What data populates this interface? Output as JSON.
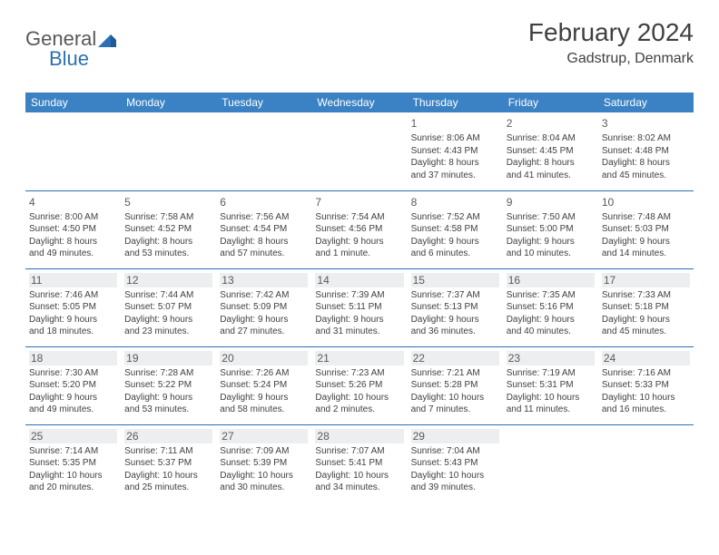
{
  "logo": {
    "text1": "General",
    "text2": "Blue"
  },
  "title": "February 2024",
  "location": "Gadstrup, Denmark",
  "colors": {
    "header_bg": "#3b82c4",
    "header_text": "#ffffff",
    "border": "#2d6fb3",
    "body_text": "#404040",
    "shade": "#eceeef"
  },
  "weekdays": [
    "Sunday",
    "Monday",
    "Tuesday",
    "Wednesday",
    "Thursday",
    "Friday",
    "Saturday"
  ],
  "weeks": [
    [
      null,
      null,
      null,
      null,
      {
        "d": "1",
        "sr": "Sunrise: 8:06 AM",
        "ss": "Sunset: 4:43 PM",
        "dl1": "Daylight: 8 hours",
        "dl2": "and 37 minutes."
      },
      {
        "d": "2",
        "sr": "Sunrise: 8:04 AM",
        "ss": "Sunset: 4:45 PM",
        "dl1": "Daylight: 8 hours",
        "dl2": "and 41 minutes."
      },
      {
        "d": "3",
        "sr": "Sunrise: 8:02 AM",
        "ss": "Sunset: 4:48 PM",
        "dl1": "Daylight: 8 hours",
        "dl2": "and 45 minutes."
      }
    ],
    [
      {
        "d": "4",
        "sr": "Sunrise: 8:00 AM",
        "ss": "Sunset: 4:50 PM",
        "dl1": "Daylight: 8 hours",
        "dl2": "and 49 minutes."
      },
      {
        "d": "5",
        "sr": "Sunrise: 7:58 AM",
        "ss": "Sunset: 4:52 PM",
        "dl1": "Daylight: 8 hours",
        "dl2": "and 53 minutes."
      },
      {
        "d": "6",
        "sr": "Sunrise: 7:56 AM",
        "ss": "Sunset: 4:54 PM",
        "dl1": "Daylight: 8 hours",
        "dl2": "and 57 minutes."
      },
      {
        "d": "7",
        "sr": "Sunrise: 7:54 AM",
        "ss": "Sunset: 4:56 PM",
        "dl1": "Daylight: 9 hours",
        "dl2": "and 1 minute."
      },
      {
        "d": "8",
        "sr": "Sunrise: 7:52 AM",
        "ss": "Sunset: 4:58 PM",
        "dl1": "Daylight: 9 hours",
        "dl2": "and 6 minutes."
      },
      {
        "d": "9",
        "sr": "Sunrise: 7:50 AM",
        "ss": "Sunset: 5:00 PM",
        "dl1": "Daylight: 9 hours",
        "dl2": "and 10 minutes."
      },
      {
        "d": "10",
        "sr": "Sunrise: 7:48 AM",
        "ss": "Sunset: 5:03 PM",
        "dl1": "Daylight: 9 hours",
        "dl2": "and 14 minutes."
      }
    ],
    [
      {
        "d": "11",
        "sr": "Sunrise: 7:46 AM",
        "ss": "Sunset: 5:05 PM",
        "dl1": "Daylight: 9 hours",
        "dl2": "and 18 minutes.",
        "s": true
      },
      {
        "d": "12",
        "sr": "Sunrise: 7:44 AM",
        "ss": "Sunset: 5:07 PM",
        "dl1": "Daylight: 9 hours",
        "dl2": "and 23 minutes.",
        "s": true
      },
      {
        "d": "13",
        "sr": "Sunrise: 7:42 AM",
        "ss": "Sunset: 5:09 PM",
        "dl1": "Daylight: 9 hours",
        "dl2": "and 27 minutes.",
        "s": true
      },
      {
        "d": "14",
        "sr": "Sunrise: 7:39 AM",
        "ss": "Sunset: 5:11 PM",
        "dl1": "Daylight: 9 hours",
        "dl2": "and 31 minutes.",
        "s": true
      },
      {
        "d": "15",
        "sr": "Sunrise: 7:37 AM",
        "ss": "Sunset: 5:13 PM",
        "dl1": "Daylight: 9 hours",
        "dl2": "and 36 minutes.",
        "s": true
      },
      {
        "d": "16",
        "sr": "Sunrise: 7:35 AM",
        "ss": "Sunset: 5:16 PM",
        "dl1": "Daylight: 9 hours",
        "dl2": "and 40 minutes.",
        "s": true
      },
      {
        "d": "17",
        "sr": "Sunrise: 7:33 AM",
        "ss": "Sunset: 5:18 PM",
        "dl1": "Daylight: 9 hours",
        "dl2": "and 45 minutes.",
        "s": true
      }
    ],
    [
      {
        "d": "18",
        "sr": "Sunrise: 7:30 AM",
        "ss": "Sunset: 5:20 PM",
        "dl1": "Daylight: 9 hours",
        "dl2": "and 49 minutes.",
        "s": true
      },
      {
        "d": "19",
        "sr": "Sunrise: 7:28 AM",
        "ss": "Sunset: 5:22 PM",
        "dl1": "Daylight: 9 hours",
        "dl2": "and 53 minutes.",
        "s": true
      },
      {
        "d": "20",
        "sr": "Sunrise: 7:26 AM",
        "ss": "Sunset: 5:24 PM",
        "dl1": "Daylight: 9 hours",
        "dl2": "and 58 minutes.",
        "s": true
      },
      {
        "d": "21",
        "sr": "Sunrise: 7:23 AM",
        "ss": "Sunset: 5:26 PM",
        "dl1": "Daylight: 10 hours",
        "dl2": "and 2 minutes.",
        "s": true
      },
      {
        "d": "22",
        "sr": "Sunrise: 7:21 AM",
        "ss": "Sunset: 5:28 PM",
        "dl1": "Daylight: 10 hours",
        "dl2": "and 7 minutes.",
        "s": true
      },
      {
        "d": "23",
        "sr": "Sunrise: 7:19 AM",
        "ss": "Sunset: 5:31 PM",
        "dl1": "Daylight: 10 hours",
        "dl2": "and 11 minutes.",
        "s": true
      },
      {
        "d": "24",
        "sr": "Sunrise: 7:16 AM",
        "ss": "Sunset: 5:33 PM",
        "dl1": "Daylight: 10 hours",
        "dl2": "and 16 minutes.",
        "s": true
      }
    ],
    [
      {
        "d": "25",
        "sr": "Sunrise: 7:14 AM",
        "ss": "Sunset: 5:35 PM",
        "dl1": "Daylight: 10 hours",
        "dl2": "and 20 minutes.",
        "s": true
      },
      {
        "d": "26",
        "sr": "Sunrise: 7:11 AM",
        "ss": "Sunset: 5:37 PM",
        "dl1": "Daylight: 10 hours",
        "dl2": "and 25 minutes.",
        "s": true
      },
      {
        "d": "27",
        "sr": "Sunrise: 7:09 AM",
        "ss": "Sunset: 5:39 PM",
        "dl1": "Daylight: 10 hours",
        "dl2": "and 30 minutes.",
        "s": true
      },
      {
        "d": "28",
        "sr": "Sunrise: 7:07 AM",
        "ss": "Sunset: 5:41 PM",
        "dl1": "Daylight: 10 hours",
        "dl2": "and 34 minutes.",
        "s": true
      },
      {
        "d": "29",
        "sr": "Sunrise: 7:04 AM",
        "ss": "Sunset: 5:43 PM",
        "dl1": "Daylight: 10 hours",
        "dl2": "and 39 minutes.",
        "s": true
      },
      null,
      null
    ]
  ]
}
